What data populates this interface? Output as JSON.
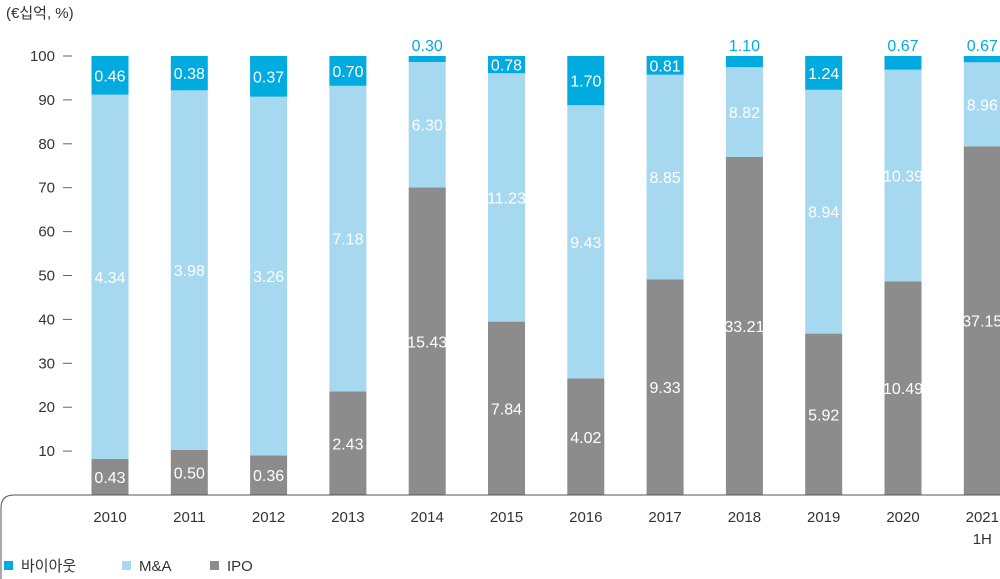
{
  "chart_data": {
    "type": "bar",
    "stacked": true,
    "percent_stacked": true,
    "unit_label": "(€십억, %)",
    "ylim": [
      0,
      100
    ],
    "yticks": [
      10,
      20,
      30,
      40,
      50,
      60,
      70,
      80,
      90,
      100
    ],
    "categories": [
      "2010",
      "2011",
      "2012",
      "2013",
      "2014",
      "2015",
      "2016",
      "2017",
      "2018",
      "2019",
      "2020",
      "2021\n1H"
    ],
    "series": [
      {
        "name": "IPO",
        "color": "#8c8c8c",
        "values": [
          0.43,
          0.5,
          0.36,
          2.43,
          15.43,
          7.84,
          4.02,
          9.33,
          33.21,
          5.92,
          10.49,
          37.15
        ]
      },
      {
        "name": "M&A",
        "color": "#a6d8ef",
        "values": [
          4.34,
          3.98,
          3.26,
          7.18,
          6.3,
          11.23,
          9.43,
          8.85,
          8.82,
          8.94,
          10.39,
          8.96
        ]
      },
      {
        "name": "바이아웃",
        "color": "#00abe0",
        "values": [
          0.46,
          0.38,
          0.37,
          0.7,
          0.3,
          0.78,
          1.7,
          0.81,
          1.1,
          1.24,
          0.67,
          0.67
        ]
      }
    ],
    "legend": {
      "position": "bottom-left",
      "order": [
        "바이아웃",
        "M&A",
        "IPO"
      ]
    },
    "grid": false
  }
}
